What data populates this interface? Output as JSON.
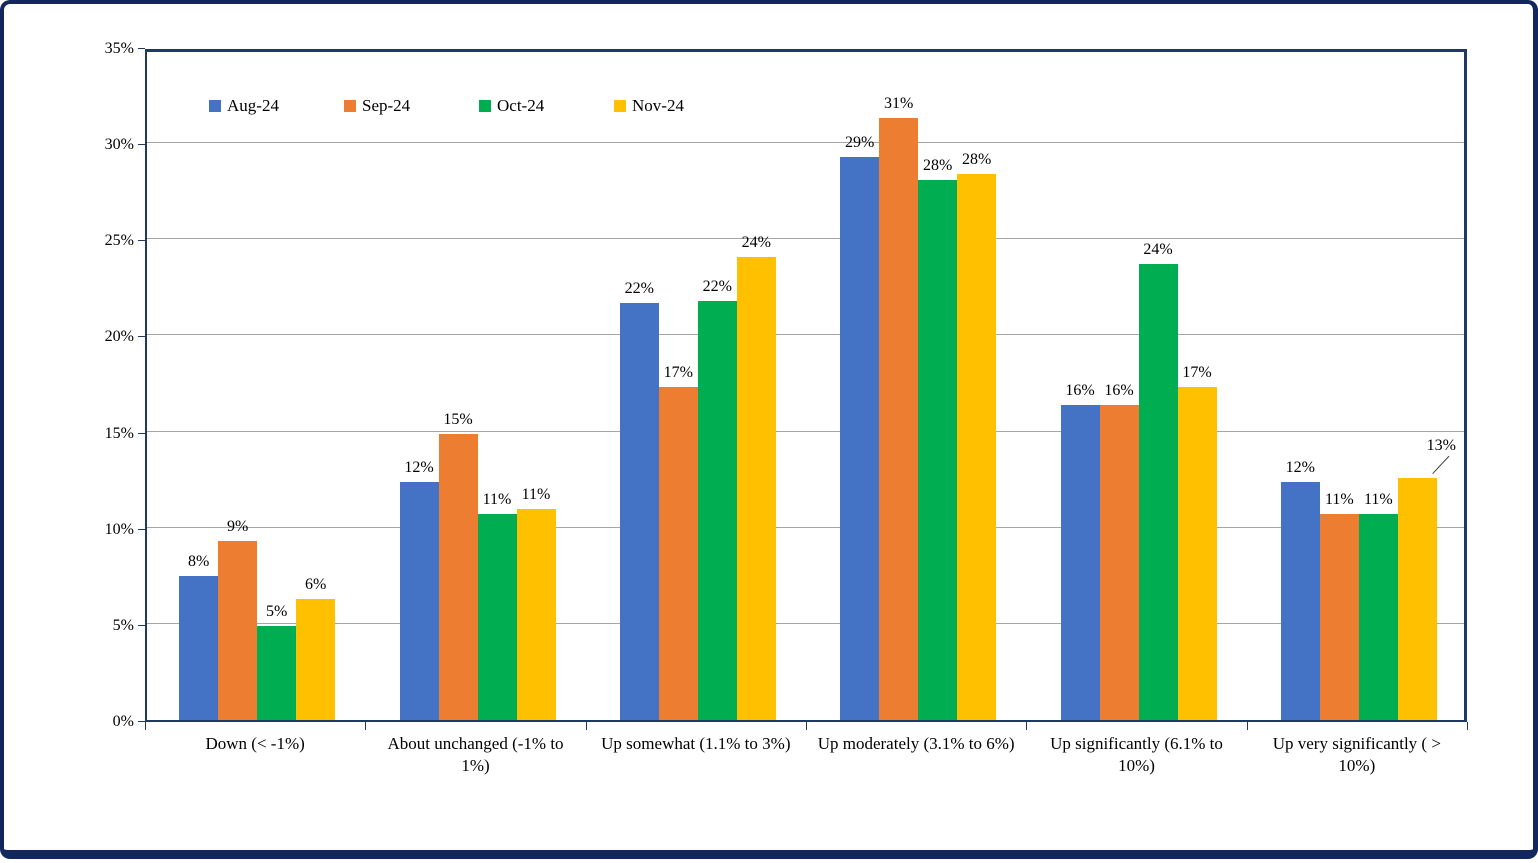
{
  "chart_data": {
    "type": "bar",
    "title": "",
    "xlabel": "",
    "ylabel": "",
    "categories": [
      "Down (< -1%)",
      "About unchanged (-1% to 1%)",
      "Up somewhat (1.1% to 3%)",
      "Up moderately (3.1% to 6%)",
      "Up significantly (6.1% to 10%)",
      "Up very significantly ( > 10%)"
    ],
    "series": [
      {
        "name": "Aug-24",
        "color": "#4472C4",
        "values": [
          7.5,
          12.4,
          21.7,
          29.3,
          16.4,
          12.4
        ],
        "labels": [
          "8%",
          "12%",
          "22%",
          "29%",
          "16%",
          "12%"
        ]
      },
      {
        "name": "Sep-24",
        "color": "#ED7D31",
        "values": [
          9.3,
          14.9,
          17.3,
          31.3,
          16.4,
          10.7
        ],
        "labels": [
          "9%",
          "15%",
          "17%",
          "31%",
          "16%",
          "11%"
        ]
      },
      {
        "name": "Oct-24",
        "color": "#00AD50",
        "values": [
          4.9,
          10.7,
          21.8,
          28.1,
          23.7,
          10.7
        ],
        "labels": [
          "5%",
          "11%",
          "22%",
          "28%",
          "24%",
          "11%"
        ]
      },
      {
        "name": "Nov-24",
        "color": "#FFC000",
        "values": [
          6.3,
          11.0,
          24.1,
          28.4,
          17.3,
          12.6
        ],
        "labels": [
          "6%",
          "11%",
          "24%",
          "28%",
          "17%",
          "13%"
        ]
      }
    ],
    "ylim": [
      0,
      35
    ],
    "ytick_step": 5,
    "ytick_labels": [
      "0%",
      "5%",
      "10%",
      "15%",
      "20%",
      "25%",
      "30%",
      "35%"
    ],
    "grid": "horizontal",
    "legend_position": "top-left-inside",
    "callout_label": {
      "series_index": 3,
      "category_index": 5
    }
  },
  "colors": {
    "frame": "#14265E",
    "axis": "#1F3864",
    "gridline": "#A6A6A6",
    "background": "#FFFFFF",
    "data_label": "#000000"
  }
}
